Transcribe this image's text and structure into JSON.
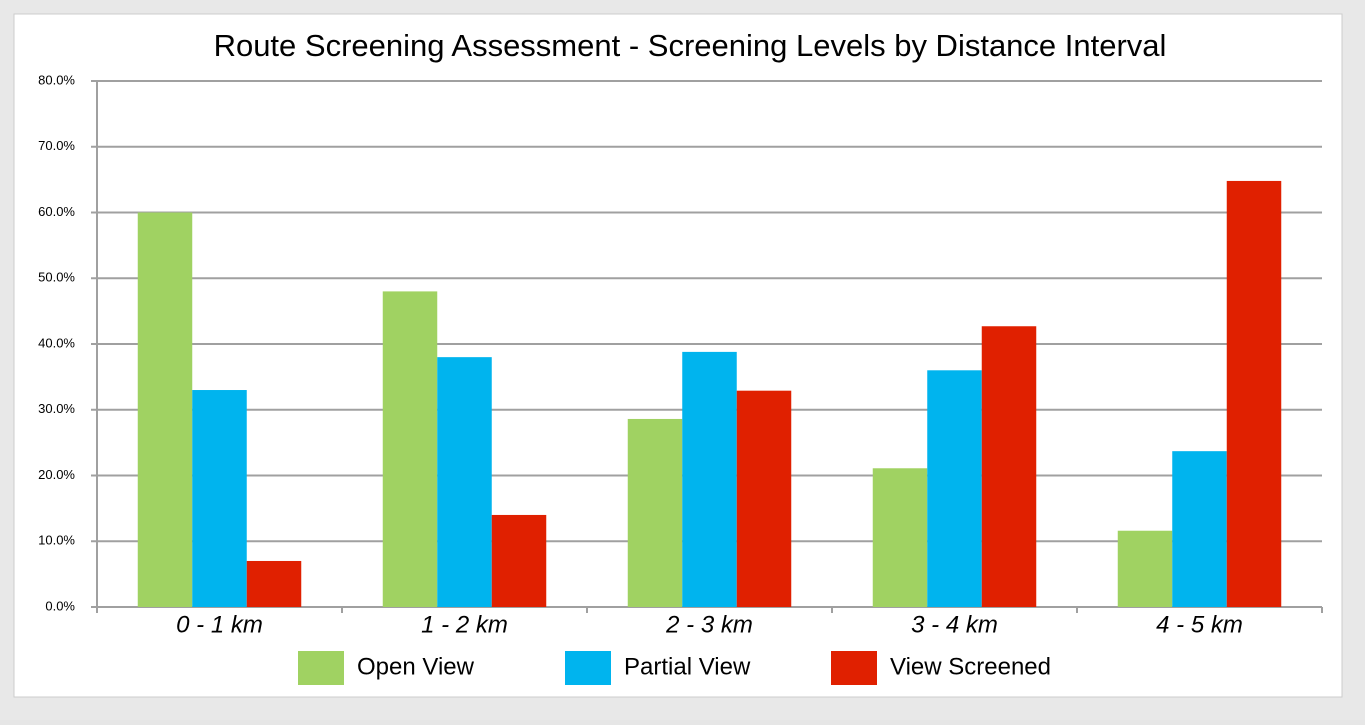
{
  "chart_data": {
    "type": "bar",
    "title": "Route Screening Assessment - Screening Levels by Distance Interval",
    "categories": [
      "0 - 1 km",
      "1 - 2 km",
      "2 - 3 km",
      "3 - 4 km",
      "4 - 5 km"
    ],
    "series": [
      {
        "name": "Open View",
        "color": "#a0d262",
        "values": [
          60,
          48,
          28.6,
          21.1,
          11.6
        ]
      },
      {
        "name": "Partial View",
        "color": "#00b4ee",
        "values": [
          33,
          38,
          38.8,
          36,
          23.7
        ]
      },
      {
        "name": "View Screened",
        "color": "#e02000",
        "values": [
          7,
          14,
          32.9,
          42.7,
          64.8
        ]
      }
    ],
    "ylim": [
      0,
      80
    ],
    "yticks": [
      {
        "value": 0,
        "label": "0.0%"
      },
      {
        "value": 10,
        "label": "10.0%"
      },
      {
        "value": 20,
        "label": "20.0%"
      },
      {
        "value": 30,
        "label": "30.0%"
      },
      {
        "value": 40,
        "label": "40.0%"
      },
      {
        "value": 50,
        "label": "50.0%"
      },
      {
        "value": 60,
        "label": "60.0%"
      },
      {
        "value": 70,
        "label": "70.0%"
      },
      {
        "value": 80,
        "label": "80.0%"
      }
    ],
    "grid": true,
    "legend": "bottom"
  }
}
